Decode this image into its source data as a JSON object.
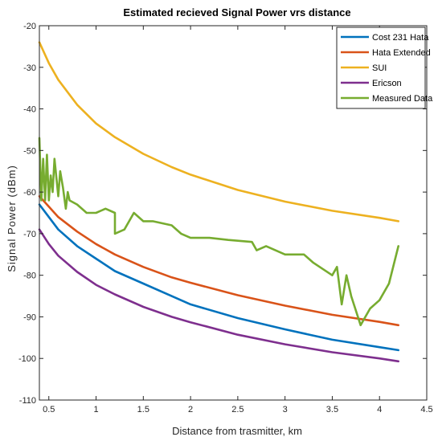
{
  "chart_data": {
    "type": "line",
    "title": "Estimated recieved Signal Power vrs distance",
    "xlabel": "Distance from trasmitter, km",
    "ylabel": "Signal Power (dBm)",
    "xlim": [
      0.4,
      4.5
    ],
    "ylim": [
      -110,
      -20
    ],
    "xticks": [
      0.5,
      1,
      1.5,
      2,
      2.5,
      3,
      3.5,
      4,
      4.5
    ],
    "xtick_labels": [
      "0.5",
      "1",
      "1.5",
      "2",
      "2.5",
      "3",
      "3.5",
      "4",
      "4.5"
    ],
    "yticks": [
      -110,
      -100,
      -90,
      -80,
      -70,
      -60,
      -50,
      -40,
      -30,
      -20
    ],
    "ytick_labels": [
      "-110",
      "-100",
      "-90",
      "-80",
      "-70",
      "-60",
      "-50",
      "-40",
      "-30",
      "-20"
    ],
    "grid": false,
    "legend_position": "top-right",
    "series": [
      {
        "name": "Cost 231 Hata",
        "color": "#0072BD",
        "x": [
          0.4,
          0.5,
          0.6,
          0.8,
          1.0,
          1.2,
          1.5,
          1.8,
          2.0,
          2.5,
          3.0,
          3.5,
          4.0,
          4.2
        ],
        "y": [
          -63,
          -66,
          -69,
          -73,
          -76,
          -79,
          -82,
          -85,
          -87,
          -90.3,
          -93,
          -95.5,
          -97.3,
          -98
        ]
      },
      {
        "name": "Hata Extended",
        "color": "#D95319",
        "x": [
          0.4,
          0.5,
          0.6,
          0.8,
          1.0,
          1.2,
          1.5,
          1.8,
          2.0,
          2.5,
          3.0,
          3.5,
          4.0,
          4.2
        ],
        "y": [
          -61,
          -63.5,
          -66,
          -69.5,
          -72.5,
          -75,
          -78,
          -80.5,
          -81.8,
          -84.8,
          -87.3,
          -89.5,
          -91.2,
          -92
        ]
      },
      {
        "name": "SUI",
        "color": "#EDB120",
        "x": [
          0.4,
          0.5,
          0.6,
          0.8,
          1.0,
          1.2,
          1.5,
          1.8,
          2.0,
          2.5,
          3.0,
          3.5,
          4.0,
          4.2
        ],
        "y": [
          -24,
          -29,
          -33,
          -39,
          -43.5,
          -46.8,
          -50.8,
          -54,
          -55.8,
          -59.5,
          -62.3,
          -64.5,
          -66.2,
          -67
        ]
      },
      {
        "name": "Ericson",
        "color": "#7E2F8E",
        "x": [
          0.4,
          0.5,
          0.6,
          0.8,
          1.0,
          1.2,
          1.5,
          1.8,
          2.0,
          2.5,
          3.0,
          3.5,
          4.0,
          4.2
        ],
        "y": [
          -69,
          -72.5,
          -75.3,
          -79.2,
          -82.3,
          -84.6,
          -87.6,
          -90,
          -91.3,
          -94.3,
          -96.6,
          -98.5,
          -100,
          -100.7
        ]
      },
      {
        "name": "Measured Data",
        "color": "#77AC30",
        "x": [
          0.4,
          0.42,
          0.44,
          0.46,
          0.48,
          0.5,
          0.52,
          0.54,
          0.56,
          0.6,
          0.62,
          0.65,
          0.68,
          0.7,
          0.72,
          0.8,
          0.9,
          1.0,
          1.1,
          1.2,
          1.2,
          1.3,
          1.4,
          1.5,
          1.6,
          1.8,
          1.9,
          2.0,
          2.2,
          2.4,
          2.65,
          2.7,
          2.8,
          3.0,
          3.2,
          3.3,
          3.5,
          3.55,
          3.6,
          3.65,
          3.7,
          3.8,
          3.9,
          4.0,
          4.1,
          4.2
        ],
        "y": [
          -47,
          -62,
          -52,
          -62,
          -51,
          -62,
          -56,
          -60,
          -52,
          -61,
          -55,
          -59,
          -64,
          -60,
          -62,
          -63,
          -65,
          -65,
          -64,
          -65,
          -70,
          -69,
          -65,
          -67,
          -67,
          -68,
          -70,
          -71,
          -71,
          -71.5,
          -72,
          -74,
          -73,
          -75,
          -75,
          -77,
          -80,
          -78,
          -87,
          -80,
          -85,
          -92,
          -88,
          -86,
          -82,
          -73
        ]
      }
    ]
  }
}
